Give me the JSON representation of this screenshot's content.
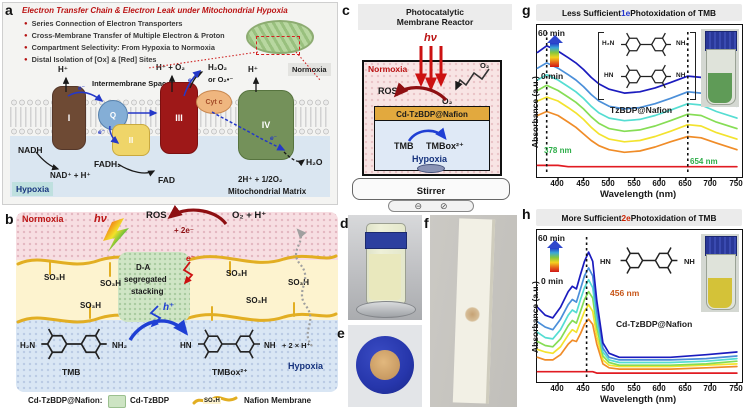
{
  "panel_letters": {
    "a": "a",
    "b": "b",
    "c": "c",
    "d": "d",
    "e": "e",
    "f": "f",
    "g": "g",
    "h": "h"
  },
  "panel_a": {
    "title": "Electron Transfer Chain & Electron Leak under Mitochondrial Hypoxia",
    "bullets": [
      "Series Connection of Electron Transporters",
      "Cross-Membrane Transfer of Multiple Electron & Proton",
      "Compartment Selectivity: From Hypoxia to Normoxia",
      "Distal Isolation of [Ox] & [Red] Sites"
    ],
    "h_plus": "H⁺",
    "intermembrane": "Intermembrane Space",
    "h_plus_o2": "H⁺ + O₂",
    "h2o2": "H₂O₂",
    "or_o2": "or O₂•⁻",
    "normoxia": "Normoxia",
    "hypoxia": "Hypoxia",
    "nadh": "NADH",
    "nad": "NAD⁺ + H⁺",
    "fadh2": "FADH₂",
    "fad": "FAD",
    "two_h": "2H⁺ + 1/2O₂",
    "h2o": "H₂O",
    "matrix": "Mitochondrial Matrix",
    "cplx_i": "I",
    "cplx_q": "Q",
    "cplx_ii": "II",
    "cplx_iii": "III",
    "cplx_iv": "IV",
    "cyt": "Cyt c",
    "e": "e⁻"
  },
  "panel_b": {
    "normoxia": "Normoxia",
    "hv": "hν",
    "ros": "ROS",
    "plus2e": "+ 2e⁻",
    "o2_h": "O₂  +  H⁺",
    "so3h": "SO₃H",
    "da_line1": "D-A",
    "da_line2": "segregated",
    "da_line3": "stacking",
    "e_minus": "e⁻",
    "h_plus": "h⁺",
    "h2n": "H₂N",
    "nh2": "NH₂",
    "tmb": "TMB",
    "minus2e": "− 2e⁻",
    "hn": "HN",
    "nh": "NH",
    "tmbox": "TMBox²⁺",
    "plus_2h": "+ 2 × H⁺",
    "hypoxia": "Hypoxia"
  },
  "legend": {
    "prefix": "Cd-TzBDP@Nafion:",
    "cd_tzbdp": "Cd-TzBDP",
    "so3h": "SO₃H",
    "nafion": "Nafion Membrane"
  },
  "panel_c": {
    "title_line1": "Photocatalytic",
    "title_line2": "Membrane Reactor",
    "hv": "hν",
    "normoxia": "Normoxia",
    "ros": "ROS",
    "o2_a": "O₂",
    "o2_b": "O₂",
    "catalyst": "Cd-TzBDP@Nafion",
    "tmb": "TMB",
    "tmbox": "TMBox²⁺",
    "hypoxia": "Hypoxia",
    "stirrer": "Stirrer"
  },
  "panel_g": {
    "title_prefix": "Less Sufficient ",
    "title_em": "1e",
    "title_suffix": " Photoxidation of TMB",
    "t_end": "60 min",
    "t_start": "0 min",
    "sample": "TzBDP@Nafion",
    "mark1": "378 nm",
    "mark2": "654 nm",
    "ylabel": "Absorbance (a.u.)",
    "xlabel": "Wavelength (nm)",
    "mol_top_left": "H₂N",
    "mol_top_right": "NH₂",
    "mol_bot_left": "HN",
    "mol_bot_right": "NH"
  },
  "panel_h": {
    "title_prefix": "More Sufficient ",
    "title_em": "2e",
    "title_suffix": " Photoxidation of TMB",
    "t_end": "60 min",
    "t_start": "0 min",
    "sample": "Cd-TzBDP@Nafion",
    "mark1": "456 nm",
    "ylabel": "Absorbance (a.u.)",
    "xlabel": "Wavelength (nm)",
    "mol_left": "HN",
    "mol_right": "NH"
  },
  "chart_data": [
    {
      "id": "g",
      "type": "line",
      "title": "Less Sufficient 1e Photoxidation of TMB",
      "xlabel": "Wavelength (nm)",
      "ylabel": "Absorbance (a.u.)",
      "xlim": [
        359,
        760
      ],
      "ylim": [
        0,
        1.05
      ],
      "grid": false,
      "legend": "none (time colorbar 0–60 min)",
      "ticks": [
        400,
        450,
        500,
        550,
        600,
        650,
        700,
        750
      ],
      "markers": [
        378,
        654
      ],
      "marker_labels": [
        "378 nm",
        "654 nm"
      ],
      "series": [
        {
          "name": "0 min",
          "color": "#e11b22",
          "x": [
            360,
            378,
            400,
            420,
            435,
            450,
            465,
            480,
            500,
            530,
            560,
            590,
            620,
            654,
            680,
            710,
            750
          ],
          "y": [
            0.05,
            0.05,
            0.05,
            0.04,
            0.04,
            0.04,
            0.04,
            0.04,
            0.04,
            0.04,
            0.04,
            0.04,
            0.04,
            0.04,
            0.04,
            0.04,
            0.04
          ]
        },
        {
          "name": "10 min",
          "color": "#f08c28",
          "x": [
            360,
            378,
            400,
            420,
            435,
            450,
            465,
            480,
            500,
            530,
            560,
            590,
            620,
            654,
            680,
            710,
            750
          ],
          "y": [
            0.43,
            0.46,
            0.43,
            0.38,
            0.34,
            0.29,
            0.24,
            0.2,
            0.17,
            0.15,
            0.16,
            0.19,
            0.23,
            0.27,
            0.26,
            0.22,
            0.17
          ]
        },
        {
          "name": "20 min",
          "color": "#f3e32e",
          "x": [
            360,
            378,
            400,
            420,
            435,
            450,
            465,
            480,
            500,
            530,
            560,
            590,
            620,
            654,
            680,
            710,
            750
          ],
          "y": [
            0.54,
            0.57,
            0.54,
            0.49,
            0.45,
            0.4,
            0.34,
            0.29,
            0.25,
            0.23,
            0.24,
            0.27,
            0.31,
            0.36,
            0.35,
            0.3,
            0.25
          ]
        },
        {
          "name": "30 min",
          "color": "#86dd55",
          "x": [
            360,
            378,
            400,
            420,
            435,
            450,
            465,
            480,
            500,
            530,
            560,
            590,
            620,
            654,
            680,
            710,
            750
          ],
          "y": [
            0.62,
            0.66,
            0.62,
            0.57,
            0.53,
            0.48,
            0.42,
            0.37,
            0.33,
            0.31,
            0.32,
            0.35,
            0.39,
            0.44,
            0.43,
            0.38,
            0.33
          ]
        },
        {
          "name": "40 min",
          "color": "#55ddd2",
          "x": [
            360,
            378,
            400,
            420,
            435,
            450,
            465,
            480,
            500,
            530,
            560,
            590,
            620,
            654,
            680,
            710,
            750
          ],
          "y": [
            0.7,
            0.74,
            0.7,
            0.65,
            0.61,
            0.56,
            0.5,
            0.45,
            0.41,
            0.39,
            0.4,
            0.43,
            0.47,
            0.52,
            0.51,
            0.46,
            0.41
          ]
        },
        {
          "name": "50 min",
          "color": "#4b8fd9",
          "x": [
            360,
            378,
            400,
            420,
            435,
            450,
            465,
            480,
            500,
            530,
            560,
            590,
            620,
            654,
            680,
            710,
            750
          ],
          "y": [
            0.79,
            0.83,
            0.79,
            0.74,
            0.7,
            0.65,
            0.59,
            0.54,
            0.5,
            0.48,
            0.49,
            0.52,
            0.56,
            0.61,
            0.6,
            0.55,
            0.5
          ]
        },
        {
          "name": "60 min",
          "color": "#1b1bbe",
          "x": [
            360,
            378,
            400,
            420,
            435,
            450,
            465,
            480,
            500,
            530,
            560,
            590,
            620,
            654,
            680,
            710,
            750
          ],
          "y": [
            0.91,
            0.96,
            0.92,
            0.87,
            0.83,
            0.78,
            0.72,
            0.67,
            0.63,
            0.6,
            0.61,
            0.64,
            0.68,
            0.73,
            0.72,
            0.67,
            0.61
          ]
        }
      ]
    },
    {
      "id": "h",
      "type": "line",
      "title": "More Sufficient 2e Photoxidation of TMB",
      "xlabel": "Wavelength (nm)",
      "ylabel": "Absorbance (a.u.)",
      "xlim": [
        359,
        760
      ],
      "ylim": [
        0,
        1.05
      ],
      "grid": false,
      "legend": "none (time colorbar 0–60 min)",
      "ticks": [
        400,
        450,
        500,
        550,
        600,
        650,
        700,
        750
      ],
      "markers": [
        456
      ],
      "marker_labels": [
        "456 nm"
      ],
      "series": [
        {
          "name": "0 min",
          "color": "#e11b22",
          "x": [
            360,
            375,
            390,
            405,
            420,
            428,
            436,
            444,
            452,
            460,
            468,
            476,
            488,
            500,
            520,
            560,
            620,
            690,
            750
          ],
          "y": [
            0.04,
            0.04,
            0.04,
            0.04,
            0.04,
            0.04,
            0.04,
            0.04,
            0.04,
            0.04,
            0.04,
            0.03,
            0.03,
            0.03,
            0.03,
            0.03,
            0.03,
            0.03,
            0.03
          ]
        },
        {
          "name": "10 min",
          "color": "#f08c28",
          "x": [
            360,
            375,
            390,
            405,
            420,
            428,
            436,
            444,
            452,
            460,
            468,
            476,
            488,
            500,
            520,
            560,
            620,
            690,
            750
          ],
          "y": [
            0.15,
            0.13,
            0.13,
            0.17,
            0.25,
            0.28,
            0.27,
            0.33,
            0.4,
            0.44,
            0.4,
            0.25,
            0.1,
            0.07,
            0.06,
            0.06,
            0.06,
            0.07,
            0.08
          ]
        },
        {
          "name": "20 min",
          "color": "#f3e32e",
          "x": [
            360,
            375,
            390,
            405,
            420,
            428,
            436,
            444,
            452,
            460,
            468,
            476,
            488,
            500,
            520,
            560,
            620,
            690,
            750
          ],
          "y": [
            0.21,
            0.19,
            0.18,
            0.23,
            0.32,
            0.36,
            0.34,
            0.42,
            0.5,
            0.55,
            0.5,
            0.31,
            0.13,
            0.09,
            0.08,
            0.08,
            0.08,
            0.09,
            0.1
          ]
        },
        {
          "name": "30 min",
          "color": "#86dd55",
          "x": [
            360,
            375,
            390,
            405,
            420,
            428,
            436,
            444,
            452,
            460,
            468,
            476,
            488,
            500,
            520,
            560,
            620,
            690,
            750
          ],
          "y": [
            0.27,
            0.24,
            0.23,
            0.29,
            0.39,
            0.43,
            0.41,
            0.5,
            0.59,
            0.65,
            0.6,
            0.38,
            0.16,
            0.11,
            0.09,
            0.09,
            0.09,
            0.1,
            0.12
          ]
        },
        {
          "name": "40 min",
          "color": "#55ddd2",
          "x": [
            360,
            375,
            390,
            405,
            420,
            428,
            436,
            444,
            452,
            460,
            468,
            476,
            488,
            500,
            520,
            560,
            620,
            690,
            750
          ],
          "y": [
            0.34,
            0.3,
            0.29,
            0.36,
            0.47,
            0.51,
            0.49,
            0.59,
            0.68,
            0.74,
            0.68,
            0.44,
            0.19,
            0.13,
            0.11,
            0.11,
            0.11,
            0.12,
            0.14
          ]
        },
        {
          "name": "50 min",
          "color": "#4b8fd9",
          "x": [
            360,
            375,
            390,
            405,
            420,
            428,
            436,
            444,
            452,
            460,
            468,
            476,
            488,
            500,
            520,
            560,
            620,
            690,
            750
          ],
          "y": [
            0.42,
            0.38,
            0.36,
            0.44,
            0.55,
            0.59,
            0.57,
            0.67,
            0.77,
            0.83,
            0.77,
            0.5,
            0.22,
            0.15,
            0.13,
            0.13,
            0.13,
            0.14,
            0.16
          ]
        },
        {
          "name": "60 min",
          "color": "#1b1bbe",
          "x": [
            360,
            375,
            390,
            405,
            420,
            428,
            436,
            444,
            452,
            460,
            468,
            476,
            488,
            500,
            520,
            560,
            620,
            690,
            750
          ],
          "y": [
            0.53,
            0.47,
            0.45,
            0.53,
            0.65,
            0.69,
            0.67,
            0.78,
            0.88,
            0.95,
            0.88,
            0.58,
            0.26,
            0.18,
            0.15,
            0.15,
            0.15,
            0.17,
            0.19
          ]
        }
      ]
    }
  ]
}
